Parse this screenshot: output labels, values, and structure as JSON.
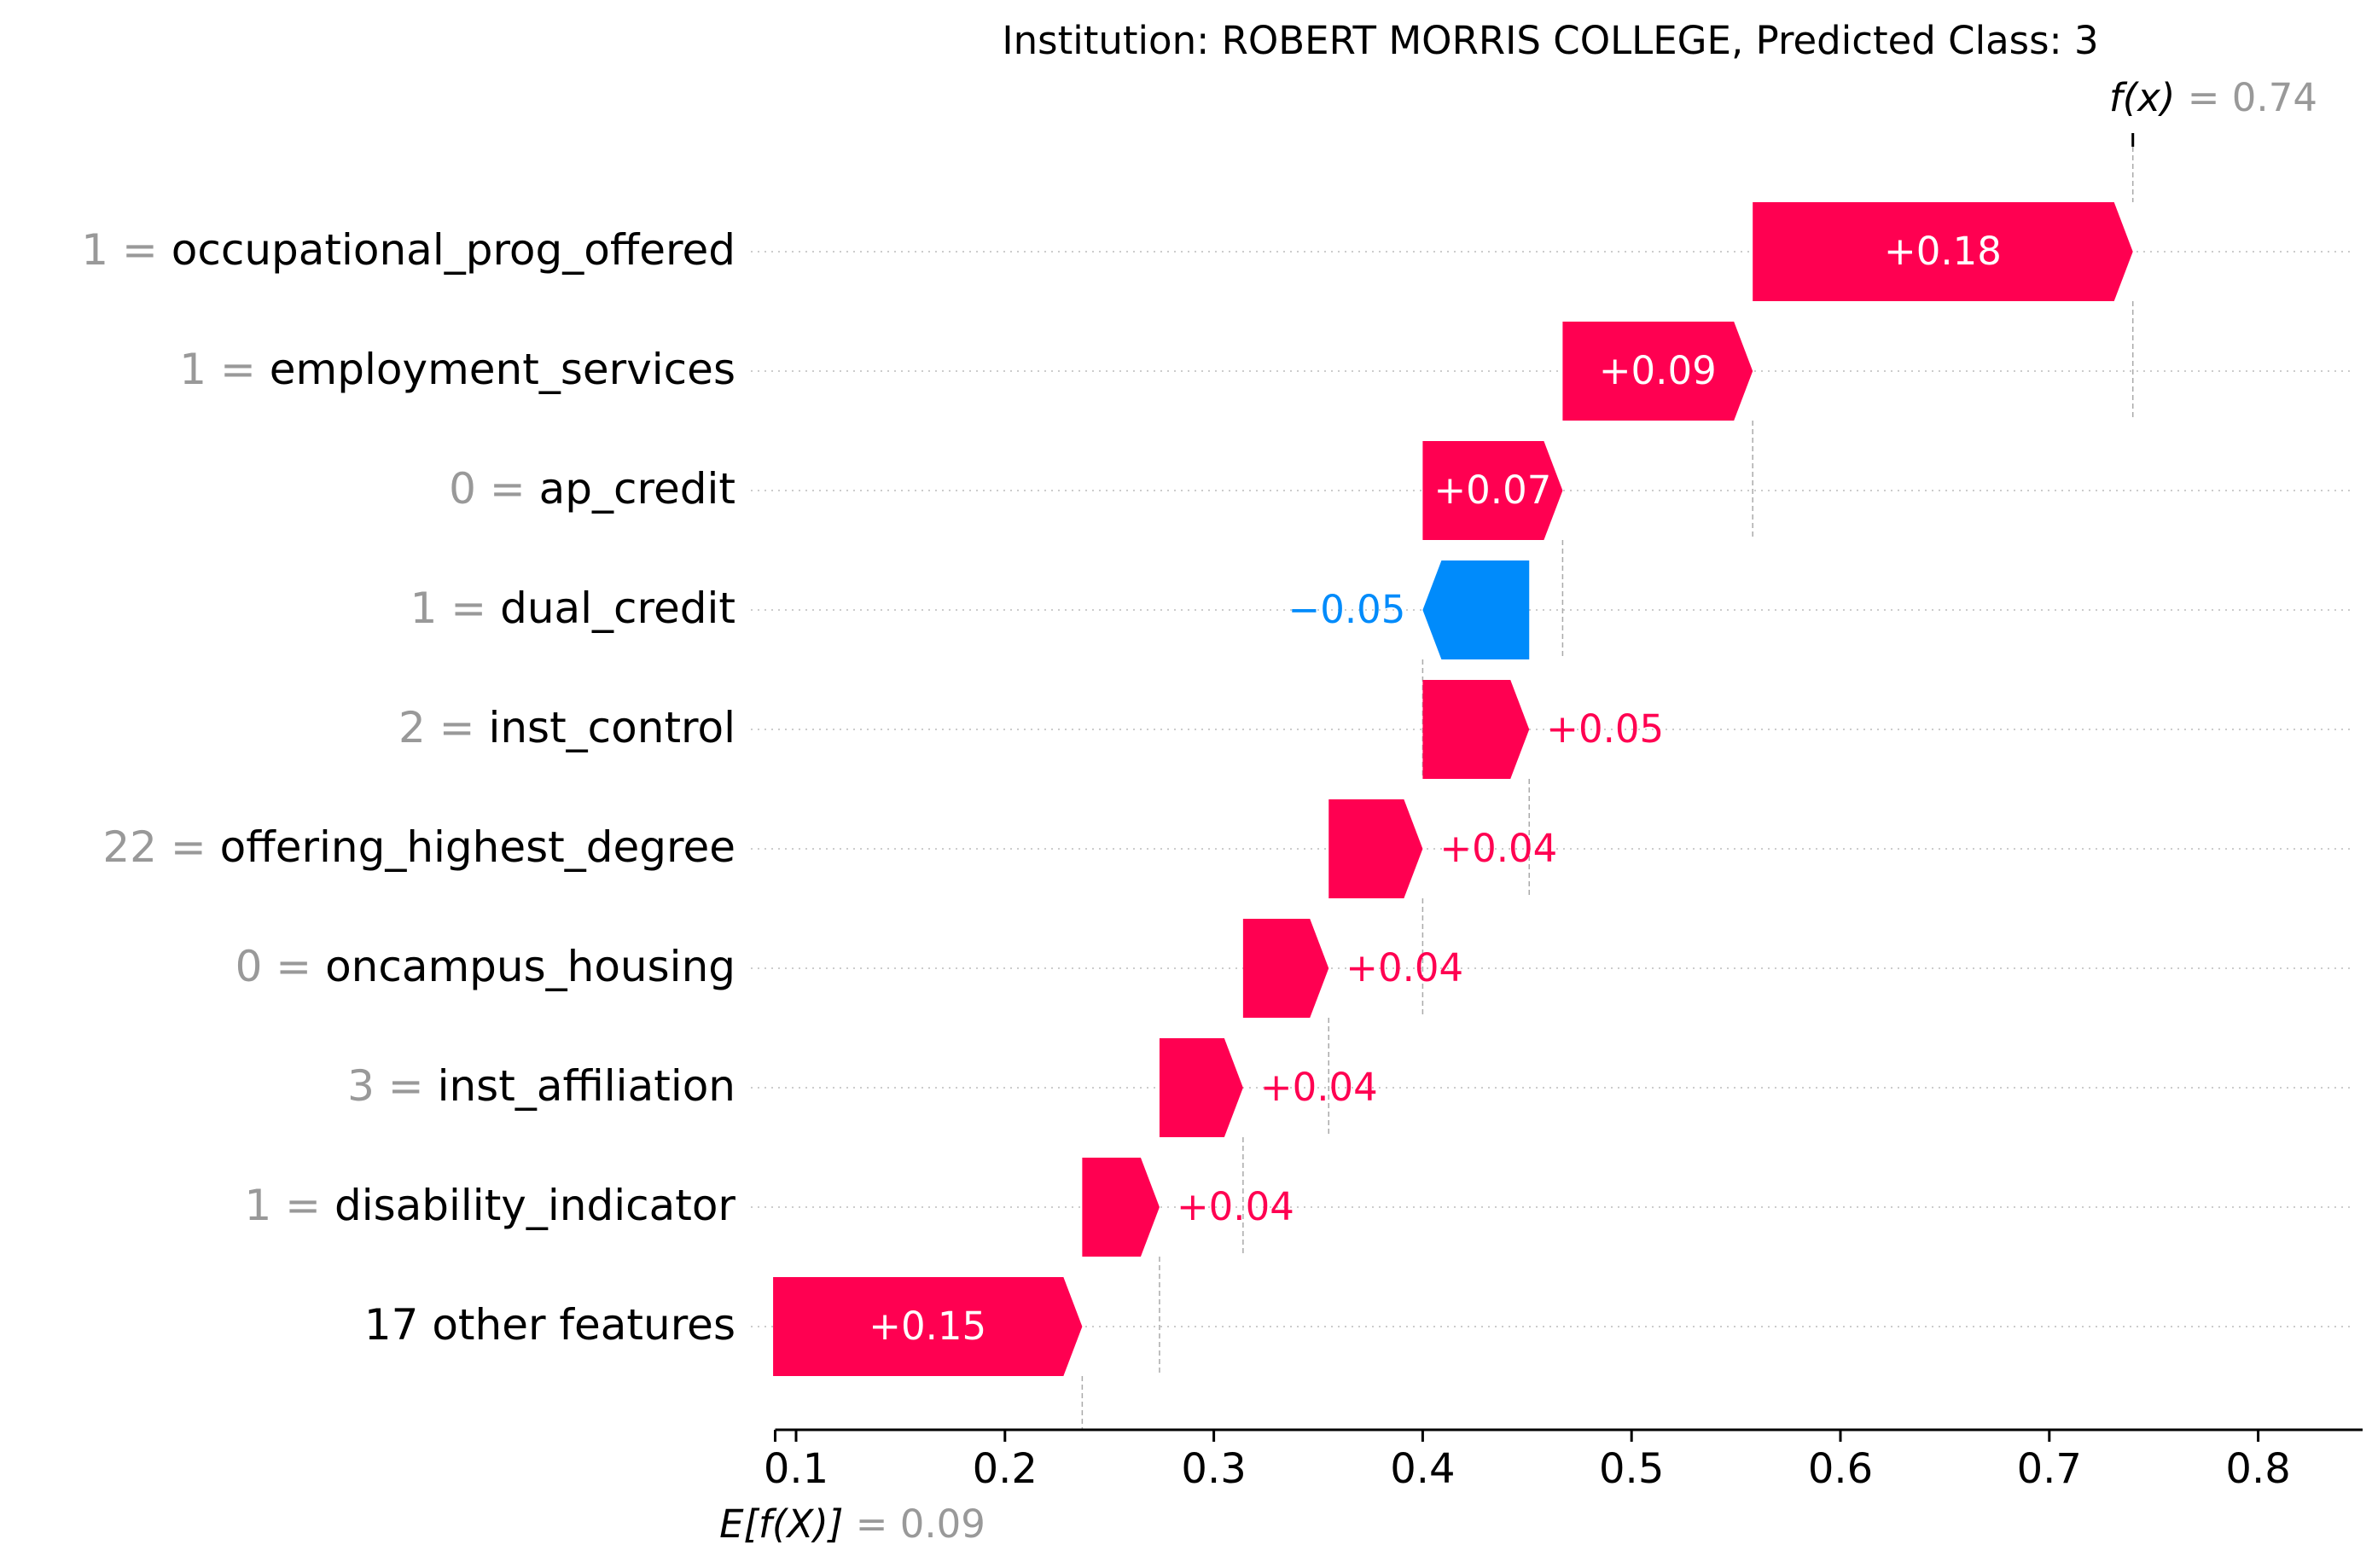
{
  "chart_data": {
    "type": "waterfall",
    "title": "Institution: ROBERT MORRIS COLLEGE, Predicted Class: 3",
    "fx": {
      "label": "f(x)",
      "value": 0.74,
      "value_text": "0.74"
    },
    "base": {
      "label": "E[f(X)]",
      "value": 0.09,
      "value_text": "0.09"
    },
    "xlim": [
      0.09,
      0.85
    ],
    "xticks": [
      0.1,
      0.2,
      0.3,
      0.4,
      0.5,
      0.6,
      0.7,
      0.8
    ],
    "xtick_labels": [
      "0.1",
      "0.2",
      "0.3",
      "0.4",
      "0.5",
      "0.6",
      "0.7",
      "0.8"
    ],
    "colors": {
      "positive": "#ff0051",
      "negative": "#008bfb",
      "value_gray": "#999999",
      "text": "#000000"
    },
    "features": [
      {
        "value_text": "1",
        "name": "occupational_prog_offered",
        "start": 0.558,
        "end": 0.74,
        "label": "+0.18"
      },
      {
        "value_text": "1",
        "name": "employment_services",
        "start": 0.467,
        "end": 0.558,
        "label": "+0.09"
      },
      {
        "value_text": "0",
        "name": "ap_credit",
        "start": 0.4,
        "end": 0.467,
        "label": "+0.07"
      },
      {
        "value_text": "1",
        "name": "dual_credit",
        "start": 0.451,
        "end": 0.4,
        "label": "−0.05"
      },
      {
        "value_text": "2",
        "name": "inst_control",
        "start": 0.4,
        "end": 0.451,
        "label": "+0.05"
      },
      {
        "value_text": "22",
        "name": "offering_highest_degree",
        "start": 0.355,
        "end": 0.4,
        "label": "+0.04"
      },
      {
        "value_text": "0",
        "name": "oncampus_housing",
        "start": 0.314,
        "end": 0.355,
        "label": "+0.04"
      },
      {
        "value_text": "3",
        "name": "inst_affiliation",
        "start": 0.274,
        "end": 0.314,
        "label": "+0.04"
      },
      {
        "value_text": "1",
        "name": "disability_indicator",
        "start": 0.237,
        "end": 0.274,
        "label": "+0.04"
      },
      {
        "value_text": "",
        "name": "17 other features",
        "start": 0.089,
        "end": 0.237,
        "label": "+0.15"
      }
    ]
  }
}
